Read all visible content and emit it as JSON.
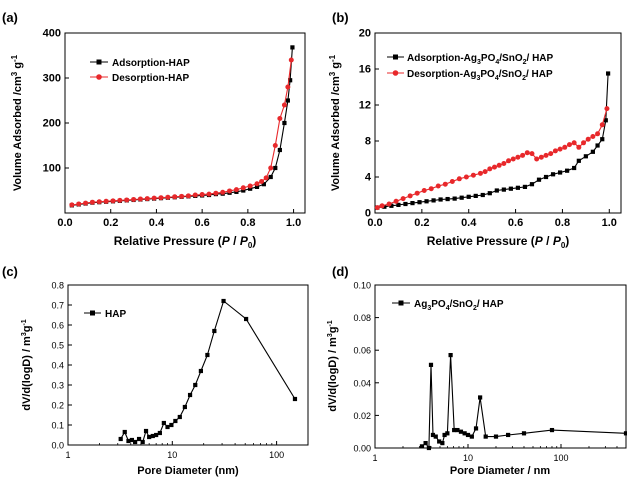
{
  "panels": {
    "a": {
      "label": "(a)",
      "xlabel_pre": "Relative Pressure (",
      "xlabel_p": "P",
      "xlabel_slash": " / ",
      "xlabel_p0": "P",
      "xlabel_zero": "0",
      "xlabel_post": ")",
      "ylabel_pre": "Volume Adsorbed /cm",
      "ylabel_sup1": "3",
      "ylabel_mid": " g",
      "ylabel_sup2": "-1"
    },
    "b": {
      "label": "(b)",
      "xlabel_pre": "Relative Pressure (",
      "xlabel_p": "P",
      "xlabel_slash": " / ",
      "xlabel_p0": "P",
      "xlabel_zero": "0",
      "xlabel_post": ")",
      "ylabel_pre": "Volume Adsorbed /cm",
      "ylabel_sup1": "3",
      "ylabel_mid": " g",
      "ylabel_sup2": "-1",
      "legend_ads_pre": "Adsorption-Ag",
      "legend_des_pre": "Desorption-Ag",
      "legend_sub3": "3",
      "legend_po": "PO",
      "legend_sub4": "4",
      "legend_sno": "/SnO",
      "legend_sub2": "2",
      "legend_hap": "/ HAP"
    },
    "c": {
      "label": "(c)",
      "ylabel_pre": "dV/d(logD) / m",
      "ylabel_sup1": "3",
      "ylabel_mid": "g",
      "ylabel_sup2": "-1"
    },
    "d": {
      "label": "(d)",
      "ylabel_pre": "dV/d(logD) / m",
      "ylabel_sup1": "3",
      "ylabel_mid": "g",
      "ylabel_sup2": "-1",
      "legend_pre": "Ag",
      "legend_sub3": "3",
      "legend_po": "PO",
      "legend_sub4": "4",
      "legend_sno": "/SnO",
      "legend_sub2": "2",
      "legend_hap": "/ HAP"
    }
  },
  "colors": {
    "black": "#000000",
    "red": "#e8282b"
  },
  "chart_data": [
    {
      "id": "a",
      "type": "line",
      "title": "",
      "xlabel": "Relative Pressure (P / P0)",
      "ylabel": "Volume Adsorbed /cm3 g-1",
      "xlim": [
        0.0,
        1.05
      ],
      "ylim": [
        0,
        400
      ],
      "xticks": [
        "0.0",
        "0.2",
        "0.4",
        "0.6",
        "0.8",
        "1.0"
      ],
      "yticks": [
        "100",
        "200",
        "300",
        "400"
      ],
      "legend_position": "top-left",
      "series": [
        {
          "name": "Adsorption-HAP",
          "color": "#000000",
          "marker": "square",
          "points": [
            [
              0.03,
              17
            ],
            [
              0.06,
              19
            ],
            [
              0.09,
              21
            ],
            [
              0.12,
              23
            ],
            [
              0.15,
              24
            ],
            [
              0.18,
              25
            ],
            [
              0.21,
              26
            ],
            [
              0.24,
              27
            ],
            [
              0.27,
              28
            ],
            [
              0.3,
              29
            ],
            [
              0.33,
              30
            ],
            [
              0.36,
              31
            ],
            [
              0.39,
              32
            ],
            [
              0.42,
              33
            ],
            [
              0.45,
              34
            ],
            [
              0.48,
              35
            ],
            [
              0.51,
              36
            ],
            [
              0.54,
              37
            ],
            [
              0.57,
              38
            ],
            [
              0.6,
              39
            ],
            [
              0.63,
              40
            ],
            [
              0.66,
              42
            ],
            [
              0.69,
              43
            ],
            [
              0.72,
              45
            ],
            [
              0.75,
              47
            ],
            [
              0.78,
              50
            ],
            [
              0.81,
              54
            ],
            [
              0.84,
              58
            ],
            [
              0.87,
              64
            ],
            [
              0.9,
              80
            ],
            [
              0.92,
              100
            ],
            [
              0.94,
              140
            ],
            [
              0.96,
              200
            ],
            [
              0.975,
              250
            ],
            [
              0.985,
              295
            ],
            [
              0.995,
              368
            ]
          ]
        },
        {
          "name": "Desorption-HAP",
          "color": "#e8282b",
          "marker": "circle",
          "points": [
            [
              0.99,
              340
            ],
            [
              0.975,
              280
            ],
            [
              0.96,
              240
            ],
            [
              0.94,
              210
            ],
            [
              0.92,
              150
            ],
            [
              0.9,
              100
            ],
            [
              0.88,
              78
            ],
            [
              0.86,
              70
            ],
            [
              0.84,
              65
            ],
            [
              0.81,
              60
            ],
            [
              0.78,
              56
            ],
            [
              0.75,
              52
            ],
            [
              0.72,
              49
            ],
            [
              0.69,
              46
            ],
            [
              0.66,
              44
            ],
            [
              0.63,
              42
            ],
            [
              0.6,
              41
            ],
            [
              0.57,
              40
            ],
            [
              0.54,
              38
            ],
            [
              0.51,
              37
            ],
            [
              0.48,
              36
            ],
            [
              0.45,
              35
            ],
            [
              0.42,
              34
            ],
            [
              0.39,
              33
            ],
            [
              0.36,
              32
            ],
            [
              0.33,
              31
            ],
            [
              0.3,
              30
            ],
            [
              0.27,
              29
            ],
            [
              0.24,
              28
            ],
            [
              0.21,
              27
            ],
            [
              0.18,
              26
            ],
            [
              0.15,
              25
            ],
            [
              0.12,
              24
            ],
            [
              0.09,
              22
            ],
            [
              0.06,
              20
            ],
            [
              0.03,
              18
            ]
          ]
        }
      ]
    },
    {
      "id": "b",
      "type": "line",
      "title": "",
      "xlabel": "Relative Pressure (P / P0)",
      "ylabel": "Volume Adsorbed /cm3 g-1",
      "xlim": [
        0.0,
        1.05
      ],
      "ylim": [
        0,
        20
      ],
      "xticks": [
        "0.0",
        "0.2",
        "0.4",
        "0.6",
        "0.8",
        "1.0"
      ],
      "yticks": [
        "0",
        "4",
        "8",
        "12",
        "16",
        "20"
      ],
      "legend_position": "top-left",
      "series": [
        {
          "name": "Adsorption-Ag3PO4/SnO2/ HAP",
          "color": "#000000",
          "marker": "square",
          "points": [
            [
              0.01,
              0.6
            ],
            [
              0.04,
              0.7
            ],
            [
              0.07,
              0.8
            ],
            [
              0.1,
              0.9
            ],
            [
              0.13,
              1.0
            ],
            [
              0.16,
              1.1
            ],
            [
              0.19,
              1.2
            ],
            [
              0.22,
              1.3
            ],
            [
              0.25,
              1.4
            ],
            [
              0.28,
              1.5
            ],
            [
              0.31,
              1.55
            ],
            [
              0.34,
              1.6
            ],
            [
              0.37,
              1.7
            ],
            [
              0.4,
              1.8
            ],
            [
              0.43,
              1.9
            ],
            [
              0.46,
              2.0
            ],
            [
              0.49,
              2.2
            ],
            [
              0.52,
              2.5
            ],
            [
              0.55,
              2.6
            ],
            [
              0.58,
              2.7
            ],
            [
              0.61,
              2.8
            ],
            [
              0.64,
              2.9
            ],
            [
              0.67,
              3.2
            ],
            [
              0.7,
              3.7
            ],
            [
              0.73,
              4.0
            ],
            [
              0.76,
              4.3
            ],
            [
              0.79,
              4.5
            ],
            [
              0.82,
              4.7
            ],
            [
              0.85,
              5.0
            ],
            [
              0.87,
              5.8
            ],
            [
              0.9,
              6.3
            ],
            [
              0.93,
              6.8
            ],
            [
              0.95,
              7.5
            ],
            [
              0.97,
              8.2
            ],
            [
              0.985,
              10.3
            ],
            [
              0.995,
              15.5
            ]
          ]
        },
        {
          "name": "Desorption-Ag3PO4/SnO2/ HAP",
          "color": "#e8282b",
          "marker": "circle",
          "points": [
            [
              0.99,
              11.6
            ],
            [
              0.97,
              9.8
            ],
            [
              0.95,
              8.8
            ],
            [
              0.93,
              8.5
            ],
            [
              0.91,
              8.2
            ],
            [
              0.89,
              7.8
            ],
            [
              0.87,
              7.3
            ],
            [
              0.85,
              7.8
            ],
            [
              0.83,
              7.6
            ],
            [
              0.81,
              7.3
            ],
            [
              0.79,
              7.1
            ],
            [
              0.77,
              6.9
            ],
            [
              0.75,
              6.6
            ],
            [
              0.73,
              6.4
            ],
            [
              0.71,
              6.2
            ],
            [
              0.69,
              6.0
            ],
            [
              0.67,
              6.6
            ],
            [
              0.65,
              6.7
            ],
            [
              0.63,
              6.4
            ],
            [
              0.61,
              6.2
            ],
            [
              0.59,
              6.0
            ],
            [
              0.57,
              5.8
            ],
            [
              0.55,
              5.5
            ],
            [
              0.53,
              5.3
            ],
            [
              0.51,
              5.1
            ],
            [
              0.49,
              4.9
            ],
            [
              0.47,
              4.6
            ],
            [
              0.45,
              4.4
            ],
            [
              0.42,
              4.2
            ],
            [
              0.39,
              4.0
            ],
            [
              0.36,
              3.8
            ],
            [
              0.33,
              3.5
            ],
            [
              0.3,
              3.2
            ],
            [
              0.27,
              3.0
            ],
            [
              0.24,
              2.7
            ],
            [
              0.21,
              2.5
            ],
            [
              0.18,
              2.2
            ],
            [
              0.15,
              1.9
            ],
            [
              0.12,
              1.6
            ],
            [
              0.09,
              1.3
            ],
            [
              0.06,
              1.0
            ],
            [
              0.03,
              0.8
            ],
            [
              0.01,
              0.6
            ]
          ]
        }
      ]
    },
    {
      "id": "c",
      "type": "line",
      "title": "",
      "xlabel": "Pore Diameter (nm)",
      "ylabel": "dV/d(logD) / m3g-1",
      "xscale": "log",
      "xlim": [
        1,
        200
      ],
      "ylim": [
        0.0,
        0.8
      ],
      "xticks": [
        "1",
        "10",
        "100"
      ],
      "yticks": [
        "0.0",
        "0.1",
        "0.2",
        "0.3",
        "0.4",
        "0.5",
        "0.6",
        "0.7",
        "0.8"
      ],
      "legend_position": "top-left",
      "series": [
        {
          "name": "HAP",
          "color": "#000000",
          "marker": "square",
          "points": [
            [
              3.2,
              0.03
            ],
            [
              3.5,
              0.065
            ],
            [
              3.8,
              0.02
            ],
            [
              4.1,
              0.025
            ],
            [
              4.4,
              0.015
            ],
            [
              4.8,
              0.03
            ],
            [
              5.2,
              0.015
            ],
            [
              5.6,
              0.07
            ],
            [
              6.0,
              0.04
            ],
            [
              6.5,
              0.045
            ],
            [
              7.0,
              0.05
            ],
            [
              7.6,
              0.06
            ],
            [
              8.3,
              0.11
            ],
            [
              9.0,
              0.09
            ],
            [
              9.8,
              0.1
            ],
            [
              10.7,
              0.12
            ],
            [
              11.8,
              0.14
            ],
            [
              13.2,
              0.19
            ],
            [
              14.8,
              0.25
            ],
            [
              16.6,
              0.3
            ],
            [
              18.8,
              0.37
            ],
            [
              21.7,
              0.45
            ],
            [
              25.3,
              0.57
            ],
            [
              31.0,
              0.72
            ],
            [
              51.0,
              0.63
            ],
            [
              150.0,
              0.23
            ]
          ]
        }
      ]
    },
    {
      "id": "d",
      "type": "line",
      "title": "",
      "xlabel": "Pore Diameter / nm",
      "ylabel": "dV/d(logD) / m3g-1",
      "xscale": "log",
      "xlim": [
        1,
        500
      ],
      "ylim": [
        0.0,
        0.1
      ],
      "xticks": [
        "1",
        "10",
        "100"
      ],
      "yticks": [
        "0.00",
        "0.02",
        "0.04",
        "0.06",
        "0.08",
        "0.10"
      ],
      "legend_position": "top-left",
      "series": [
        {
          "name": "Ag3PO4/SnO2/ HAP",
          "color": "#000000",
          "marker": "square",
          "points": [
            [
              3.2,
              0.001
            ],
            [
              3.5,
              0.003
            ],
            [
              3.8,
              0.0
            ],
            [
              4.0,
              0.051
            ],
            [
              4.2,
              0.008
            ],
            [
              4.5,
              0.007
            ],
            [
              4.9,
              0.004
            ],
            [
              5.3,
              0.003
            ],
            [
              5.6,
              0.008
            ],
            [
              6.0,
              0.009
            ],
            [
              6.5,
              0.057
            ],
            [
              7.1,
              0.011
            ],
            [
              7.7,
              0.011
            ],
            [
              8.4,
              0.01
            ],
            [
              9.2,
              0.009
            ],
            [
              10.0,
              0.008
            ],
            [
              11.0,
              0.007
            ],
            [
              12.2,
              0.012
            ],
            [
              13.5,
              0.031
            ],
            [
              15.5,
              0.007
            ],
            [
              20.0,
              0.007
            ],
            [
              27.0,
              0.008
            ],
            [
              40.0,
              0.009
            ],
            [
              80.0,
              0.011
            ],
            [
              500.0,
              0.009
            ]
          ]
        }
      ]
    }
  ]
}
